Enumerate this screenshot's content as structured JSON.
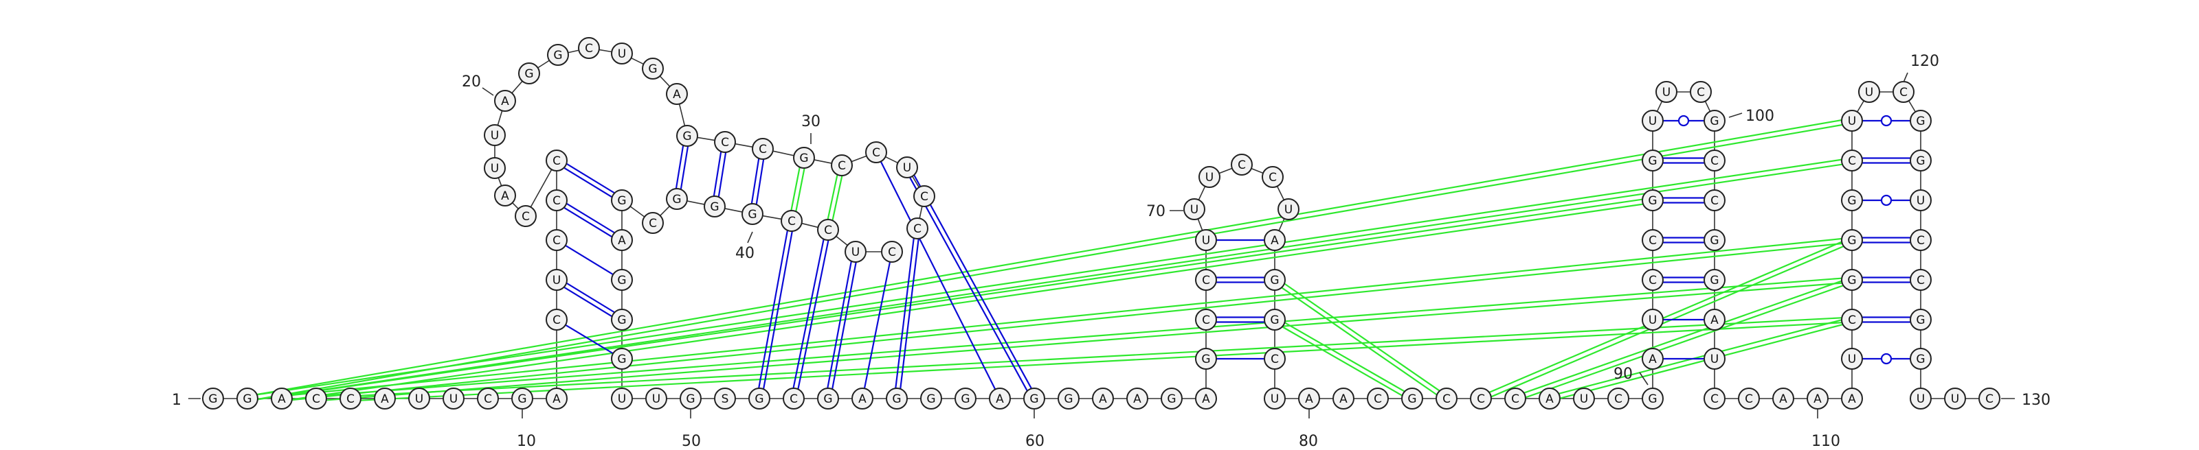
{
  "colors": {
    "secondary_pair": "#0a0ad6",
    "tertiary_pair": "#2ee82e",
    "nucleotide_fill": "#f2f2f2",
    "nucleotide_stroke": "#222222",
    "text": "#111111"
  },
  "labels": {
    "start": "1",
    "end": "130",
    "n10": "10",
    "n20": "20",
    "n30": "30",
    "n40": "40",
    "n50": "50",
    "n60": "60",
    "n70": "70",
    "n80": "80",
    "n90": "90",
    "n100": "100",
    "n110": "110",
    "n120": "120"
  },
  "bases": {
    "baseline": [
      "G",
      "G",
      "A",
      "C",
      "C",
      "A",
      "U",
      "U",
      "C",
      "G",
      "A",
      "U",
      "U",
      "G",
      "S",
      "G",
      "C",
      "G",
      "A",
      "G",
      "G",
      "G",
      "A",
      "G",
      "G",
      "A",
      "A",
      "G",
      "A",
      "U",
      "A",
      "A",
      "C",
      "G",
      "C",
      "C",
      "C",
      "A",
      "U",
      "C",
      "G",
      "C",
      "C",
      "A",
      "A",
      "A",
      "U",
      "U",
      "C"
    ],
    "h1_left": [
      "C",
      "U",
      "C",
      "C",
      "C"
    ],
    "h1_right": [
      "G",
      "G",
      "A",
      "G",
      "G"
    ],
    "loop1": [
      "A",
      "U",
      "U",
      "A",
      "G",
      "G",
      "C",
      "U",
      "G"
    ],
    "h2_upper": [
      "G",
      "C",
      "C",
      "G",
      "C",
      "C",
      "U",
      "C"
    ],
    "h2_lower": [
      "C",
      "G",
      "G",
      "G",
      "C",
      "C",
      "U",
      "C"
    ],
    "h3_left": [
      "G",
      "C",
      "C",
      "U"
    ],
    "h3_right": [
      "C",
      "G",
      "G",
      "A"
    ],
    "loop3": [
      "U",
      "U",
      "C",
      "C",
      "U"
    ],
    "h4_left": [
      "A",
      "U",
      "C",
      "C",
      "G",
      "U"
    ],
    "h4_right": [
      "U",
      "A",
      "G",
      "C",
      "C",
      "G"
    ],
    "loop4": [
      "U",
      "C"
    ],
    "h5_left": [
      "U",
      "G",
      "C",
      "G",
      "U",
      "G"
    ],
    "h5_right": [
      "G",
      "G",
      "C",
      "C",
      "U",
      "G"
    ],
    "loop5": [
      "U",
      "C"
    ]
  }
}
